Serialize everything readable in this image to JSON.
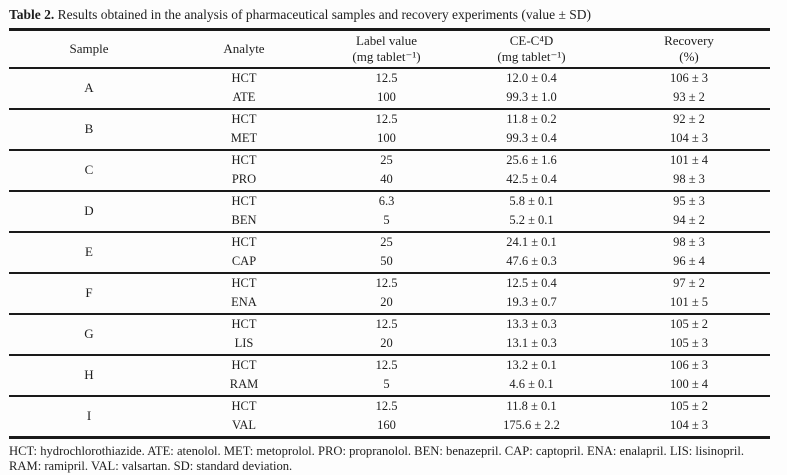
{
  "caption": {
    "label": "Table 2.",
    "text": " Results obtained in the analysis of pharmaceutical samples and recovery experiments (value ± SD)"
  },
  "table": {
    "columns": [
      {
        "label": "Sample",
        "sub": ""
      },
      {
        "label": "Analyte",
        "sub": ""
      },
      {
        "label": "Label value",
        "sub": "(mg tablet⁻¹)"
      },
      {
        "label": "CE-C⁴D",
        "sub": "(mg tablet⁻¹)"
      },
      {
        "label": "Recovery",
        "sub": "(%)"
      }
    ],
    "groups": [
      {
        "sample": "A",
        "rows": [
          {
            "analyte": "HCT",
            "label_value": "12.5",
            "ce_value": "12.0 ± 0.4",
            "recovery": "106 ± 3"
          },
          {
            "analyte": "ATE",
            "label_value": "100",
            "ce_value": "99.3 ± 1.0",
            "recovery": "93 ± 2"
          }
        ]
      },
      {
        "sample": "B",
        "rows": [
          {
            "analyte": "HCT",
            "label_value": "12.5",
            "ce_value": "11.8 ± 0.2",
            "recovery": "92 ± 2"
          },
          {
            "analyte": "MET",
            "label_value": "100",
            "ce_value": "99.3 ± 0.4",
            "recovery": "104 ± 3"
          }
        ]
      },
      {
        "sample": "C",
        "rows": [
          {
            "analyte": "HCT",
            "label_value": "25",
            "ce_value": "25.6 ± 1.6",
            "recovery": "101 ± 4"
          },
          {
            "analyte": "PRO",
            "label_value": "40",
            "ce_value": "42.5 ± 0.4",
            "recovery": "98 ± 3"
          }
        ]
      },
      {
        "sample": "D",
        "rows": [
          {
            "analyte": "HCT",
            "label_value": "6.3",
            "ce_value": "5.8 ± 0.1",
            "recovery": "95 ± 3"
          },
          {
            "analyte": "BEN",
            "label_value": "5",
            "ce_value": "5.2 ± 0.1",
            "recovery": "94 ± 2"
          }
        ]
      },
      {
        "sample": "E",
        "rows": [
          {
            "analyte": "HCT",
            "label_value": "25",
            "ce_value": "24.1 ± 0.1",
            "recovery": "98 ± 3"
          },
          {
            "analyte": "CAP",
            "label_value": "50",
            "ce_value": "47.6 ± 0.3",
            "recovery": "96 ± 4"
          }
        ]
      },
      {
        "sample": "F",
        "rows": [
          {
            "analyte": "HCT",
            "label_value": "12.5",
            "ce_value": "12.5 ± 0.4",
            "recovery": "97 ± 2"
          },
          {
            "analyte": "ENA",
            "label_value": "20",
            "ce_value": "19.3 ± 0.7",
            "recovery": "101 ± 5"
          }
        ]
      },
      {
        "sample": "G",
        "rows": [
          {
            "analyte": "HCT",
            "label_value": "12.5",
            "ce_value": "13.3 ± 0.3",
            "recovery": "105 ± 2"
          },
          {
            "analyte": "LIS",
            "label_value": "20",
            "ce_value": "13.1 ± 0.3",
            "recovery": "105 ± 3"
          }
        ]
      },
      {
        "sample": "H",
        "rows": [
          {
            "analyte": "HCT",
            "label_value": "12.5",
            "ce_value": "13.2 ± 0.1",
            "recovery": "106 ± 3"
          },
          {
            "analyte": "RAM",
            "label_value": "5",
            "ce_value": "4.6 ± 0.1",
            "recovery": "100 ± 4"
          }
        ]
      },
      {
        "sample": "I",
        "rows": [
          {
            "analyte": "HCT",
            "label_value": "12.5",
            "ce_value": "11.8 ± 0.1",
            "recovery": "105 ± 2"
          },
          {
            "analyte": "VAL",
            "label_value": "160",
            "ce_value": "175.6 ± 2.2",
            "recovery": "104 ± 3"
          }
        ]
      }
    ]
  },
  "footnote": "HCT: hydrochlorothiazide. ATE: atenolol. MET: metoprolol. PRO: propranolol. BEN: benazepril. CAP: captopril. ENA: enalapril. LIS: lisinopril. RAM: ramipril. VAL: valsartan. SD: standard deviation.",
  "colors": {
    "text": "#1e1e1e",
    "rule": "#1a1a1a",
    "background": "#fdfdfd"
  }
}
